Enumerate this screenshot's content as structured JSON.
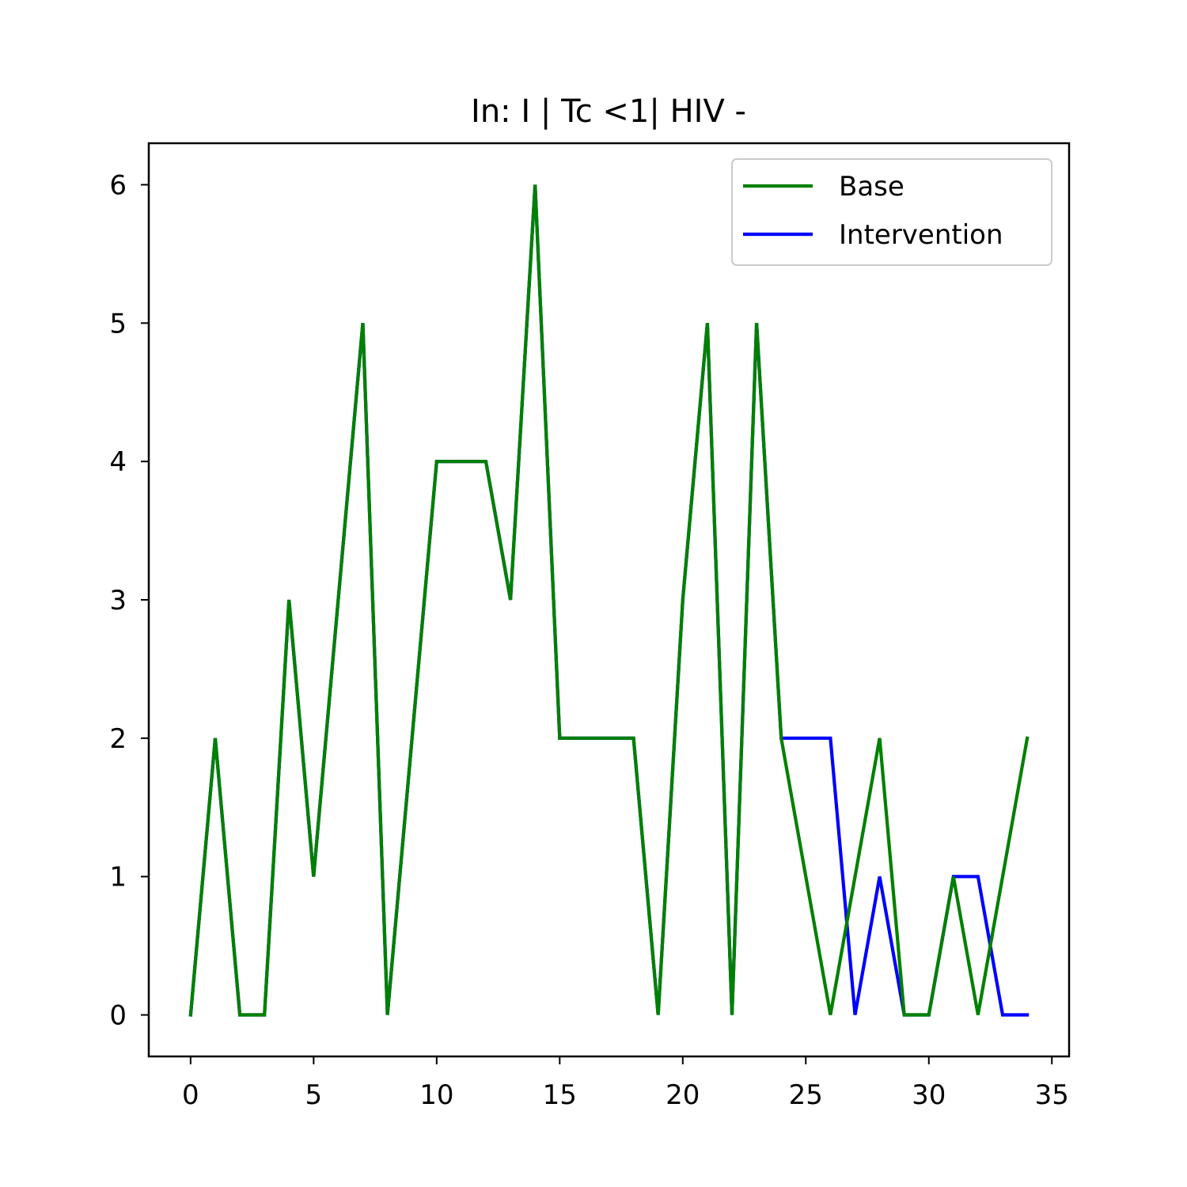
{
  "chart_data": {
    "type": "line",
    "title": "In: I | Tc <1| HIV -",
    "xlabel": "",
    "ylabel": "",
    "xlim": [
      -1.7,
      35.7
    ],
    "ylim": [
      -0.3,
      6.3
    ],
    "xticks": [
      0,
      5,
      10,
      15,
      20,
      25,
      30,
      35
    ],
    "yticks": [
      0,
      1,
      2,
      3,
      4,
      5,
      6
    ],
    "grid": false,
    "legend_position": "top-right",
    "x": [
      0,
      1,
      2,
      3,
      4,
      5,
      6,
      7,
      8,
      9,
      10,
      11,
      12,
      13,
      14,
      15,
      16,
      17,
      18,
      19,
      20,
      21,
      22,
      23,
      24,
      25,
      26,
      27,
      28,
      29,
      30,
      31,
      32,
      33,
      34
    ],
    "series": [
      {
        "name": "Intervention",
        "color": "#0000ff",
        "values": [
          0,
          2,
          0,
          0,
          3,
          1,
          3,
          5,
          0,
          2,
          4,
          4,
          4,
          3,
          6,
          2,
          2,
          2,
          2,
          0,
          3,
          5,
          0,
          5,
          2,
          2,
          2,
          0,
          1,
          0,
          0,
          1,
          1,
          0,
          0
        ]
      },
      {
        "name": "Base",
        "color": "#008000",
        "values": [
          0,
          2,
          0,
          0,
          3,
          1,
          3,
          5,
          0,
          2,
          4,
          4,
          4,
          3,
          6,
          2,
          2,
          2,
          2,
          0,
          3,
          5,
          0,
          5,
          2,
          1,
          0,
          1,
          2,
          0,
          0,
          1,
          0,
          1,
          2
        ]
      }
    ],
    "legend_order": [
      "Base",
      "Intervention"
    ]
  }
}
